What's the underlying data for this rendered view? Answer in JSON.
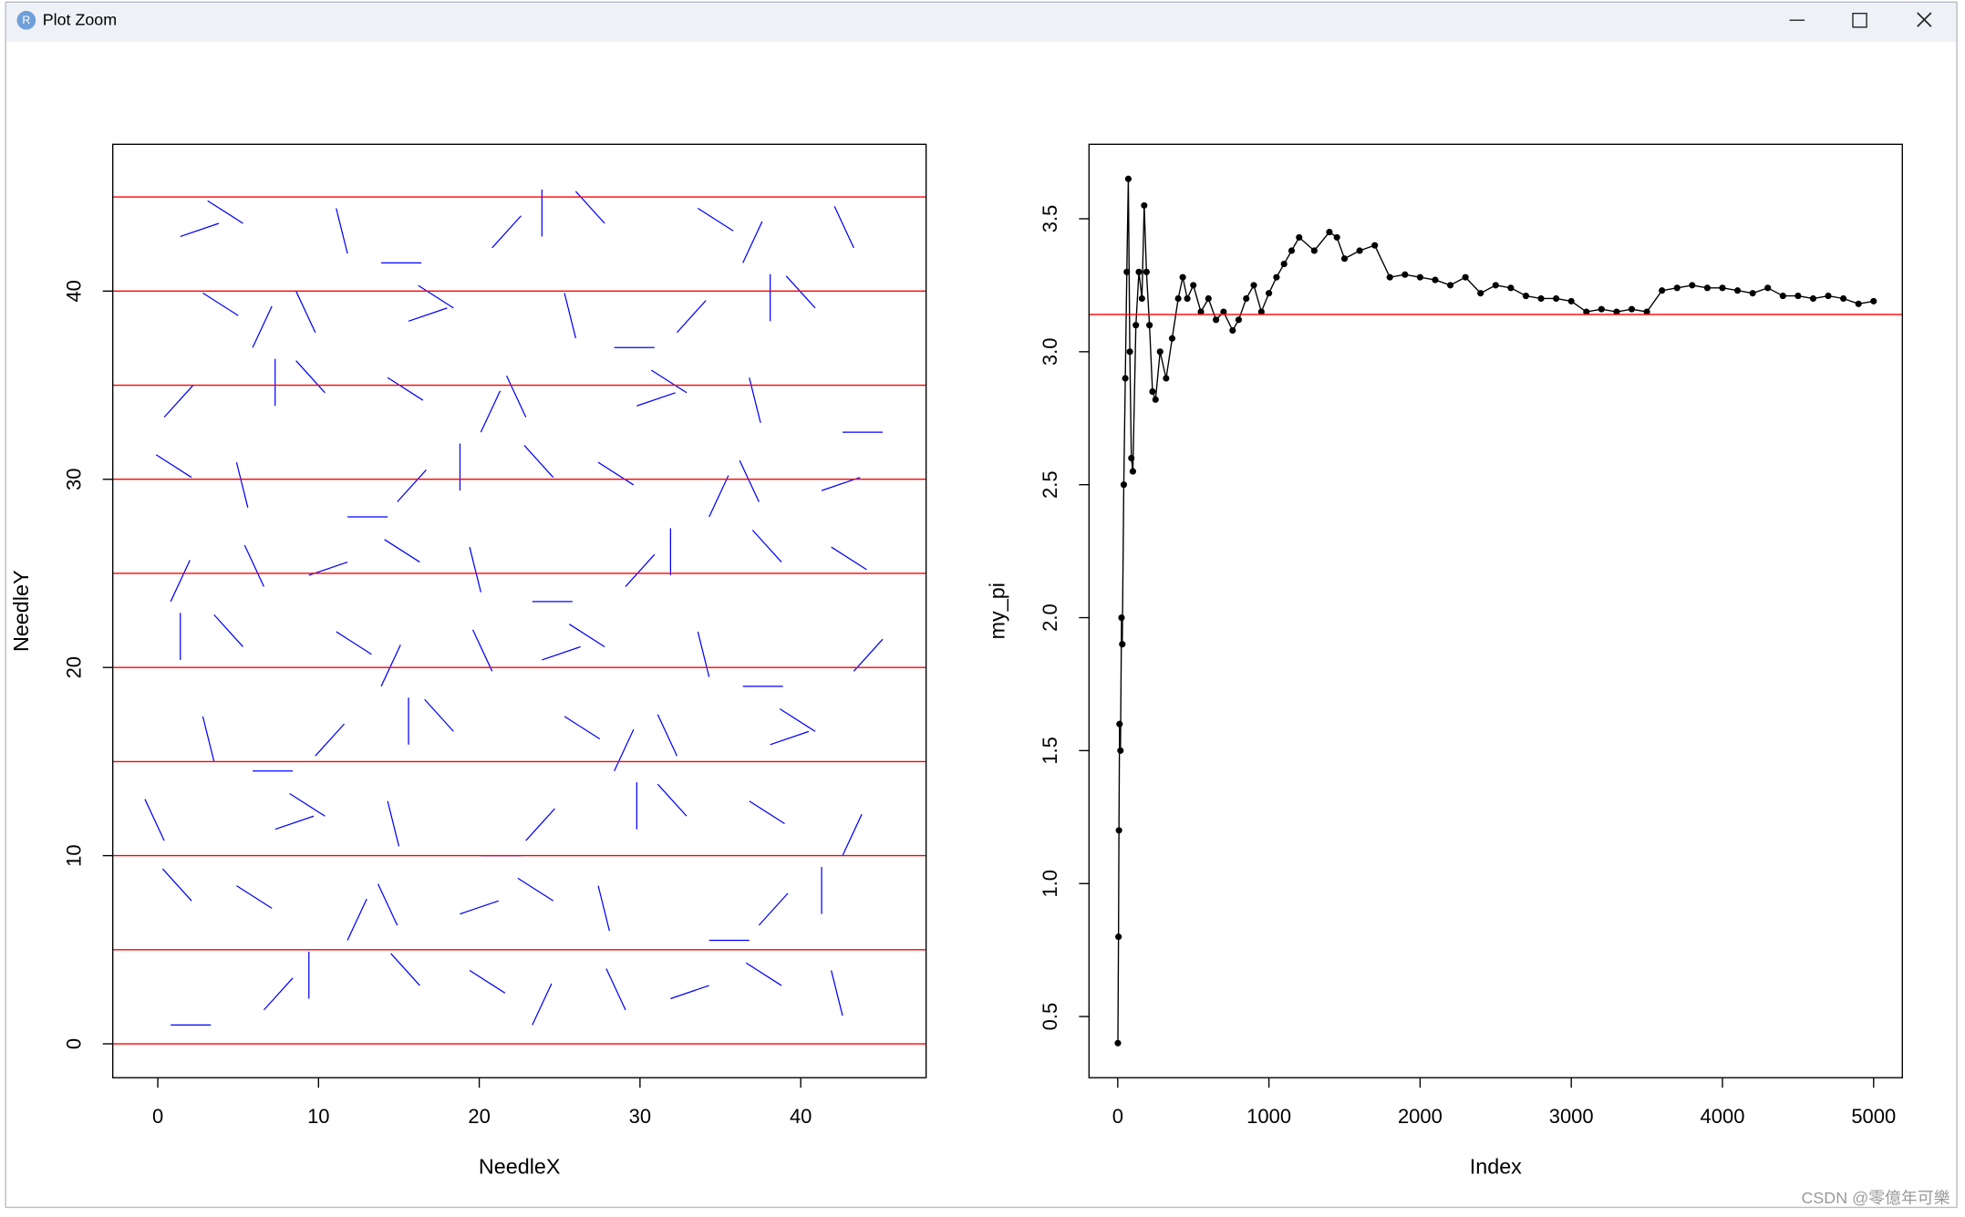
{
  "window": {
    "title": "Plot Zoom",
    "watermark": "CSDN @零億年可樂"
  },
  "chart_data": [
    {
      "type": "segments",
      "x_label": "NeedleX",
      "y_label": "NeedleY",
      "color": "#0000ff",
      "xlim": [
        -2.8,
        47.8
      ],
      "ylim": [
        -1.8,
        47.8
      ],
      "xticks": [
        0,
        10,
        20,
        30,
        40
      ],
      "yticks": [
        0,
        10,
        20,
        30,
        40
      ],
      "hlines": [
        0,
        5,
        10,
        15,
        20,
        25,
        30,
        35,
        40,
        45
      ],
      "hline_color": "#ff0000",
      "x0": [
        0.8,
        6.6,
        9.4,
        16.3,
        19.4,
        23.3,
        29.1,
        31.9,
        38.8,
        41.9,
        2.1,
        4.9,
        11.8,
        14.9,
        18.8,
        24.6,
        27.4,
        34.3,
        37.4,
        41.3,
        0.4,
        7.3,
        10.4,
        14.3,
        20.1,
        22.9,
        29.8,
        32.9,
        36.8,
        42.6,
        2.8,
        5.9,
        9.8,
        15.6,
        18.4,
        25.3,
        28.4,
        32.3,
        38.1,
        40.9,
        1.4,
        5.3,
        11.1,
        13.9,
        20.8,
        23.9,
        27.8,
        33.6,
        36.4,
        43.3,
        0.8,
        6.6,
        9.4,
        16.3,
        19.4,
        23.3,
        29.1,
        31.9,
        38.8,
        41.9,
        2.1,
        4.9,
        11.8,
        14.9,
        18.8,
        24.6,
        27.4,
        34.3,
        37.4,
        41.3,
        0.4,
        7.3,
        10.4,
        14.3,
        20.1,
        22.9,
        29.8,
        32.9,
        36.8,
        42.6,
        2.8,
        5.9,
        9.8,
        15.6,
        18.4,
        25.3,
        28.4,
        32.3,
        38.1,
        40.9,
        1.4,
        5.3,
        11.1,
        13.9,
        20.8,
        23.9,
        27.8,
        33.6,
        36.4,
        43.3
      ],
      "y0": [
        1.0,
        1.8,
        2.4,
        3.1,
        3.9,
        1.0,
        1.8,
        2.4,
        3.1,
        3.9,
        7.6,
        8.4,
        5.5,
        6.3,
        6.9,
        7.6,
        8.4,
        5.5,
        6.3,
        6.9,
        10.8,
        11.4,
        12.1,
        12.9,
        10.0,
        10.8,
        11.4,
        12.1,
        12.9,
        10.0,
        17.4,
        14.5,
        15.3,
        15.9,
        16.6,
        17.4,
        14.5,
        15.3,
        15.9,
        16.6,
        20.4,
        21.1,
        21.9,
        19.0,
        19.8,
        20.4,
        21.1,
        21.9,
        19.0,
        19.8,
        23.5,
        24.3,
        24.9,
        25.6,
        26.4,
        23.5,
        24.3,
        24.9,
        25.6,
        26.4,
        30.1,
        30.9,
        28.0,
        28.8,
        29.4,
        30.1,
        30.9,
        28.0,
        28.8,
        29.4,
        33.3,
        33.9,
        34.6,
        35.4,
        32.5,
        33.3,
        33.9,
        34.6,
        35.4,
        32.5,
        39.9,
        37.0,
        37.8,
        38.4,
        39.1,
        39.9,
        37.0,
        37.8,
        38.4,
        39.1,
        42.9,
        43.6,
        44.4,
        41.5,
        42.3,
        42.9,
        43.6,
        44.4,
        41.5,
        42.3
      ],
      "x1": [
        3.3,
        8.4,
        9.4,
        14.5,
        21.6,
        24.5,
        27.9,
        34.3,
        36.6,
        42.6,
        0.3,
        7.1,
        13.0,
        13.7,
        21.2,
        22.4,
        28.1,
        36.8,
        39.2,
        41.3,
        -0.8,
        9.7,
        8.2,
        15.0,
        22.6,
        24.7,
        29.8,
        31.1,
        39.0,
        43.8,
        3.5,
        8.4,
        11.6,
        15.6,
        16.6,
        27.5,
        29.6,
        31.1,
        40.5,
        38.7,
        1.4,
        3.5,
        13.3,
        15.1,
        19.6,
        26.3,
        25.6,
        34.3,
        38.9,
        45.1,
        2.0,
        5.4,
        11.8,
        14.1,
        20.1,
        25.8,
        30.9,
        31.9,
        37.0,
        44.1,
        -0.1,
        5.6,
        14.3,
        16.7,
        18.8,
        22.8,
        29.6,
        35.5,
        36.2,
        43.7,
        2.2,
        7.3,
        8.6,
        16.5,
        21.3,
        21.7,
        32.2,
        30.7,
        37.5,
        45.1,
        5.0,
        7.1,
        8.6,
        18.0,
        16.2,
        26.0,
        30.9,
        34.1,
        38.1,
        39.1,
        3.8,
        3.1,
        11.8,
        16.4,
        22.6,
        23.9,
        26.0,
        35.8,
        37.6,
        42.1
      ],
      "y1": [
        1.0,
        3.5,
        4.9,
        4.8,
        2.7,
        3.2,
        4.0,
        3.1,
        4.3,
        1.5,
        9.3,
        7.2,
        7.7,
        8.5,
        7.6,
        8.8,
        6.0,
        5.5,
        8.0,
        9.4,
        13.0,
        12.1,
        13.3,
        10.5,
        10.0,
        12.5,
        13.9,
        13.8,
        11.7,
        12.2,
        15.0,
        14.5,
        17.0,
        18.4,
        18.3,
        16.2,
        16.7,
        17.5,
        16.6,
        17.8,
        22.9,
        22.8,
        20.7,
        21.2,
        22.0,
        21.1,
        22.3,
        19.5,
        19.0,
        21.5,
        25.7,
        26.5,
        25.6,
        26.8,
        24.0,
        23.5,
        26.0,
        27.4,
        27.3,
        25.2,
        31.3,
        28.5,
        28.0,
        30.5,
        31.9,
        31.8,
        29.7,
        30.2,
        31.0,
        30.1,
        35.0,
        36.4,
        36.3,
        34.2,
        34.7,
        35.5,
        34.6,
        35.8,
        33.0,
        32.5,
        38.7,
        39.2,
        40.0,
        39.1,
        40.3,
        37.5,
        37.0,
        39.5,
        40.9,
        40.8,
        43.6,
        44.8,
        42.0,
        41.5,
        44.0,
        45.4,
        45.3,
        43.2,
        43.7,
        44.5
      ]
    },
    {
      "type": "line",
      "x_label": "Index",
      "y_label": "my_pi",
      "color": "#000000",
      "xlim": [
        -190,
        5190
      ],
      "ylim": [
        0.27,
        3.78
      ],
      "xticks": [
        0,
        1000,
        2000,
        3000,
        4000,
        5000
      ],
      "yticks": [
        0.5,
        {
          "value": 1,
          "label": "1.0"
        },
        1.5,
        {
          "value": 2,
          "label": "2.0"
        },
        2.5,
        {
          "value": 3,
          "label": "3.0"
        },
        3.5
      ],
      "hlines": [
        3.14
      ],
      "hline_color": "#ff0000",
      "x": [
        1,
        5,
        8,
        12,
        18,
        25,
        30,
        40,
        50,
        60,
        70,
        80,
        90,
        100,
        120,
        140,
        160,
        175,
        190,
        210,
        230,
        250,
        280,
        320,
        360,
        400,
        430,
        460,
        500,
        550,
        600,
        650,
        700,
        760,
        800,
        850,
        900,
        950,
        1000,
        1050,
        1100,
        1150,
        1200,
        1300,
        1400,
        1450,
        1500,
        1600,
        1700,
        1800,
        1900,
        2000,
        2100,
        2200,
        2300,
        2400,
        2500,
        2600,
        2700,
        2800,
        2900,
        3000,
        3100,
        3200,
        3300,
        3400,
        3500,
        3600,
        3700,
        3800,
        3900,
        4000,
        4100,
        4200,
        4300,
        4400,
        4500,
        4600,
        4700,
        4800,
        4900,
        5000
      ],
      "values": [
        0.4,
        0.8,
        1.2,
        1.6,
        1.5,
        2.0,
        1.9,
        2.5,
        2.9,
        3.3,
        3.65,
        3.0,
        2.6,
        2.55,
        3.1,
        3.3,
        3.2,
        3.55,
        3.3,
        3.1,
        2.85,
        2.82,
        3.0,
        2.9,
        3.05,
        3.2,
        3.28,
        3.2,
        3.25,
        3.15,
        3.2,
        3.12,
        3.15,
        3.08,
        3.12,
        3.2,
        3.25,
        3.15,
        3.22,
        3.28,
        3.33,
        3.38,
        3.43,
        3.38,
        3.45,
        3.43,
        3.35,
        3.38,
        3.4,
        3.28,
        3.29,
        3.28,
        3.27,
        3.25,
        3.28,
        3.22,
        3.25,
        3.24,
        3.21,
        3.2,
        3.2,
        3.19,
        3.15,
        3.16,
        3.15,
        3.16,
        3.15,
        3.23,
        3.24,
        3.25,
        3.24,
        3.24,
        3.23,
        3.22,
        3.24,
        3.21,
        3.21,
        3.2,
        3.21,
        3.2,
        3.18,
        3.19
      ]
    }
  ]
}
